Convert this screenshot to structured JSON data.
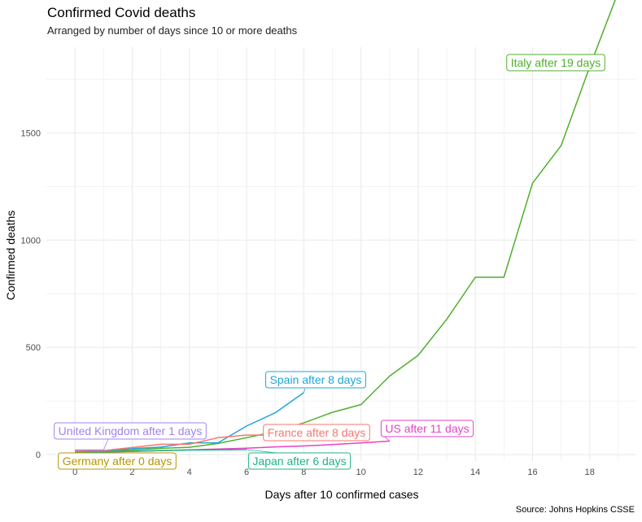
{
  "chart_data": {
    "type": "line",
    "title": "Confirmed Covid deaths",
    "subtitle": "Arranged by number of days since 10 or more deaths",
    "caption": "Source: Johns Hopkins CSSE",
    "xlabel": "Days after 10 confirmed cases",
    "ylabel": "Confirmed deaths",
    "xlim": [
      -1,
      19.6
    ],
    "ylim": [
      -30,
      1900
    ],
    "xticks": [
      0,
      2,
      4,
      6,
      8,
      10,
      12,
      14,
      16,
      18
    ],
    "yticks": [
      0,
      500,
      1000,
      1500
    ],
    "grid": true,
    "series": [
      {
        "name": "Italy",
        "color": "#4DAF2C",
        "label": "Italy after 19 days",
        "x": [
          0,
          1,
          2,
          3,
          4,
          5,
          6,
          7,
          8,
          9,
          10,
          11,
          12,
          13,
          14,
          15,
          16,
          17,
          18,
          19
        ],
        "y": [
          12,
          17,
          21,
          29,
          34,
          52,
          79,
          107,
          148,
          197,
          233,
          366,
          463,
          631,
          827,
          827,
          1266,
          1441,
          1809,
          2158
        ]
      },
      {
        "name": "Spain",
        "color": "#1FA6D6",
        "label": "Spain after 8 days",
        "x": [
          0,
          1,
          2,
          3,
          4,
          5,
          6,
          7,
          8
        ],
        "y": [
          10,
          17,
          28,
          35,
          54,
          55,
          133,
          195,
          289
        ]
      },
      {
        "name": "France",
        "color": "#F8766D",
        "label": "France after 8 days",
        "x": [
          0,
          1,
          2,
          3,
          4,
          5,
          6,
          7,
          8
        ],
        "y": [
          19,
          19,
          33,
          48,
          48,
          79,
          91,
          91,
          148
        ]
      },
      {
        "name": "US",
        "color": "#E642C8",
        "label": "US after 11 days",
        "x": [
          0,
          1,
          2,
          3,
          4,
          5,
          6,
          7,
          8,
          9,
          10,
          11
        ],
        "y": [
          11,
          12,
          15,
          19,
          22,
          26,
          30,
          36,
          40,
          47,
          54,
          63
        ]
      },
      {
        "name": "Japan",
        "color": "#1FB38A",
        "label": "Japan after 6 days",
        "x": [
          0,
          1,
          2,
          3,
          4,
          5,
          6
        ],
        "y": [
          12,
          12,
          15,
          19,
          21,
          22,
          23
        ]
      },
      {
        "name": "United Kingdom",
        "color": "#A181F1",
        "label": "United Kingdom after 1 days",
        "x": [
          0,
          1
        ],
        "y": [
          21,
          21
        ]
      },
      {
        "name": "Germany",
        "color": "#B89500",
        "label": "Germany after 0 days",
        "x": [
          0
        ],
        "y": [
          13
        ]
      }
    ]
  }
}
